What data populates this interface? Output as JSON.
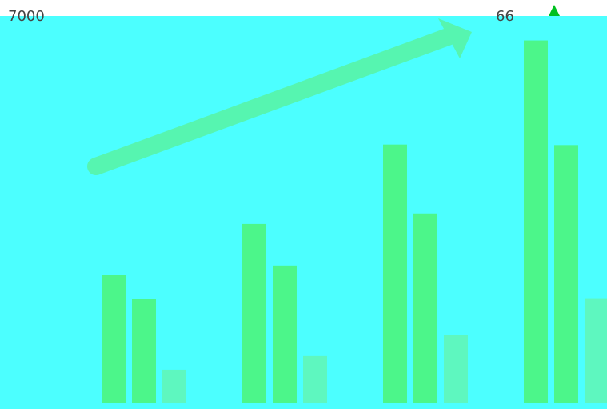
{
  "chart_data": {
    "type": "bar",
    "title": "",
    "xlabel": "",
    "ylabel": "",
    "ylim": [
      0,
      7000
    ],
    "grid": false,
    "legend": "none",
    "y_ticks": [
      "7000"
    ],
    "categories": [
      "",
      "",
      "",
      ""
    ],
    "series": [
      {
        "values": [
          2450,
          1980,
          0,
          0
        ],
        "color": "#4cf68a"
      },
      {
        "values": [
          3410,
          2620,
          0,
          0
        ],
        "color": "#4cf68a"
      },
      {
        "values": [
          4920,
          3610,
          0,
          0
        ],
        "color": "#4cf68a"
      },
      {
        "values": [
          6900,
          4910,
          0,
          0
        ],
        "color": "#4cf68a"
      }
    ],
    "third_series": [
      640,
      900,
      1300,
      2000
    ],
    "partial_top_label": "66",
    "colors": {
      "background": "#4cffff",
      "bar": "#4cf68a",
      "bar_light": "#62f6b4",
      "arrow": "#56f5b0",
      "white_band": "#ffffff",
      "marker": "#00c020"
    }
  }
}
